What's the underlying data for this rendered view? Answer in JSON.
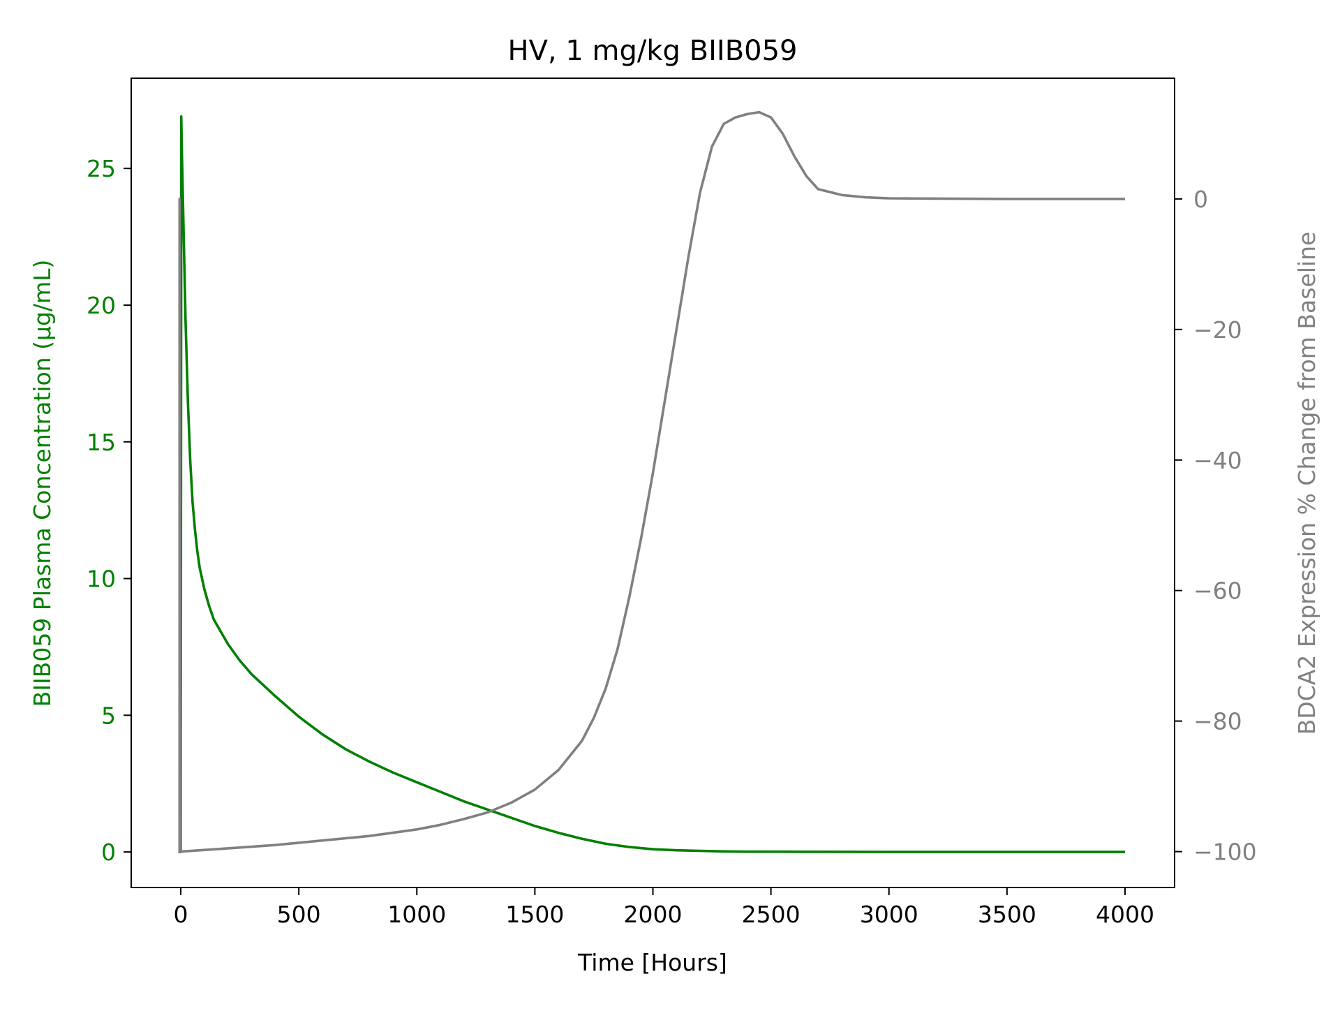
{
  "chart_data": {
    "type": "line",
    "title": "HV, 1 mg/kg BIIB059",
    "xlabel": "Time [Hours]",
    "ylabel_left": "BIIB059 Plasma Concentration (µg/mL)",
    "ylabel_right": "BDCA2 Expression % Change from Baseline",
    "xlim": [
      -210,
      4210
    ],
    "ylim_left": [
      -1.3,
      28.3
    ],
    "ylim_right": [
      -105.5,
      18.5
    ],
    "x_ticks": [
      0,
      500,
      1000,
      1500,
      2000,
      2500,
      3000,
      3500,
      4000
    ],
    "x_tick_labels": [
      "0",
      "500",
      "1000",
      "1500",
      "2000",
      "2500",
      "3000",
      "3500",
      "4000"
    ],
    "y_left_ticks": [
      0,
      5,
      10,
      15,
      20,
      25
    ],
    "y_left_tick_labels": [
      "0",
      "5",
      "10",
      "15",
      "20",
      "25"
    ],
    "y_right_ticks": [
      0,
      -20,
      -40,
      -60,
      -80,
      -100
    ],
    "y_right_tick_labels": [
      "0",
      "−20",
      "−40",
      "−60",
      "−80",
      "−100"
    ],
    "grid": false,
    "colors": {
      "left_axis": "#008000",
      "right_axis": "#808080",
      "series_left": "#008000",
      "series_right": "#808080"
    },
    "series": [
      {
        "axis": "left",
        "color": "#008000",
        "x": [
          -10,
          0,
          2,
          5,
          10,
          20,
          30,
          40,
          50,
          60,
          70,
          80,
          100,
          120,
          140,
          160,
          200,
          250,
          300,
          400,
          500,
          600,
          700,
          800,
          900,
          1000,
          1100,
          1200,
          1300,
          1400,
          1500,
          1600,
          1700,
          1800,
          1900,
          2000,
          2100,
          2200,
          2300,
          2400,
          2500,
          3000,
          3500,
          4000
        ],
        "y": [
          0,
          0,
          26.9,
          25.5,
          23.5,
          19.5,
          16.5,
          14.3,
          12.8,
          11.8,
          11.0,
          10.4,
          9.6,
          9.0,
          8.5,
          8.2,
          7.6,
          7.0,
          6.5,
          5.7,
          4.95,
          4.3,
          3.75,
          3.3,
          2.9,
          2.55,
          2.2,
          1.85,
          1.55,
          1.25,
          0.95,
          0.7,
          0.48,
          0.3,
          0.18,
          0.1,
          0.06,
          0.04,
          0.02,
          0.01,
          0.01,
          0,
          0,
          0
        ]
      },
      {
        "axis": "right",
        "color": "#808080",
        "x": [
          -10,
          -5,
          -5,
          0,
          200,
          400,
          600,
          800,
          1000,
          1100,
          1200,
          1300,
          1400,
          1500,
          1600,
          1700,
          1750,
          1800,
          1850,
          1900,
          1950,
          2000,
          2050,
          2100,
          2150,
          2200,
          2250,
          2300,
          2350,
          2400,
          2450,
          2500,
          2550,
          2600,
          2650,
          2700,
          2800,
          2900,
          3000,
          3200,
          3500,
          4000
        ],
        "y": [
          -100,
          -100,
          0,
          -100,
          -99.5,
          -99,
          -98.3,
          -97.6,
          -96.6,
          -95.9,
          -95,
          -94,
          -92.5,
          -90.5,
          -87.5,
          -83,
          -79.5,
          -75,
          -69,
          -61,
          -52,
          -42,
          -31,
          -20,
          -9,
          1,
          8,
          11.5,
          12.5,
          13,
          13.3,
          12.5,
          10,
          6.5,
          3.5,
          1.5,
          0.6,
          0.25,
          0.1,
          0.05,
          0,
          0
        ]
      }
    ]
  }
}
